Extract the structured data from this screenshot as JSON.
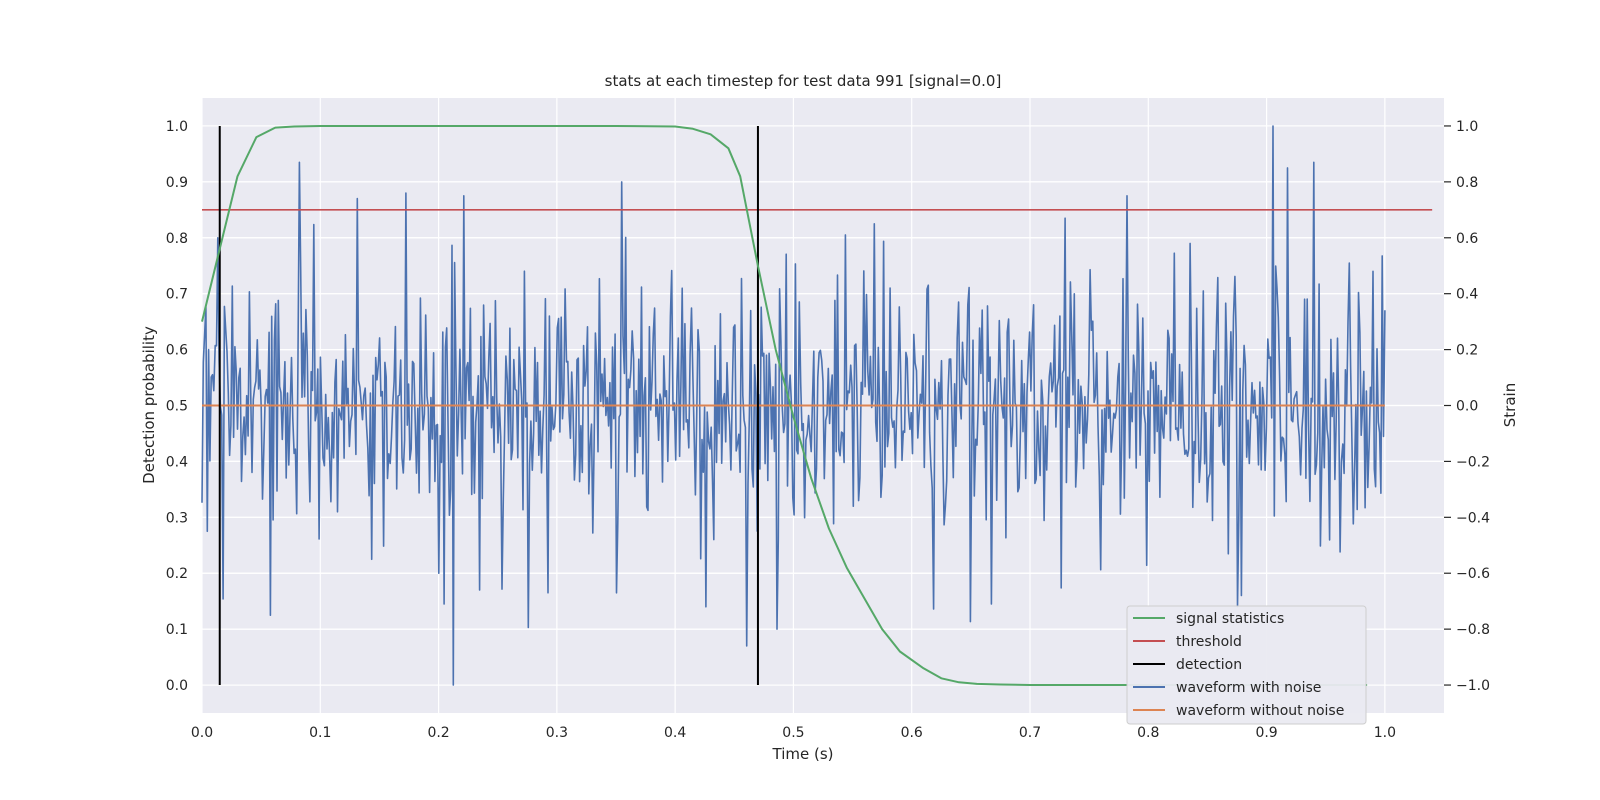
{
  "chart_data": {
    "type": "line",
    "title": "stats at each timestep for test data 991 [signal=0.0]",
    "xlabel": "Time (s)",
    "ylabel_left": "Detection probability",
    "ylabel_right": "Strain",
    "xlim": [
      0.0,
      1.05
    ],
    "ylim_left": [
      -0.05,
      1.05
    ],
    "ylim_right": [
      -1.1,
      1.1
    ],
    "x_ticks": [
      "0.0",
      "0.1",
      "0.2",
      "0.3",
      "0.4",
      "0.5",
      "0.6",
      "0.7",
      "0.8",
      "0.9",
      "1.0"
    ],
    "y_ticks_left": [
      "0.0",
      "0.1",
      "0.2",
      "0.3",
      "0.4",
      "0.5",
      "0.6",
      "0.7",
      "0.8",
      "0.9",
      "1.0"
    ],
    "y_ticks_right": [
      "−1.0",
      "−0.8",
      "−0.6",
      "−0.4",
      "−0.2",
      "0.0",
      "0.2",
      "0.4",
      "0.6",
      "0.8",
      "1.0"
    ],
    "grid": true,
    "legend_position": "lower-right",
    "signal_statistics": {
      "name": "signal statistics",
      "color": "#55a868",
      "axis": "left",
      "x": [
        0.0,
        0.015,
        0.03,
        0.046,
        0.062,
        0.078,
        0.1,
        0.15,
        0.2,
        0.25,
        0.3,
        0.35,
        0.4,
        0.415,
        0.43,
        0.445,
        0.455,
        0.47,
        0.485,
        0.5,
        0.515,
        0.53,
        0.545,
        0.56,
        0.575,
        0.59,
        0.61,
        0.625,
        0.64,
        0.655,
        0.675,
        0.7,
        0.8,
        0.9,
        0.985
      ],
      "y": [
        0.65,
        0.78,
        0.91,
        0.98,
        0.997,
        0.999,
        1.0,
        1.0,
        1.0,
        1.0,
        1.0,
        1.0,
        0.999,
        0.995,
        0.985,
        0.96,
        0.91,
        0.75,
        0.6,
        0.48,
        0.37,
        0.28,
        0.21,
        0.155,
        0.1,
        0.06,
        0.03,
        0.012,
        0.005,
        0.002,
        0.001,
        0.0,
        0.0,
        0.0,
        0.0
      ]
    },
    "threshold": {
      "name": "threshold",
      "color": "#c44e52",
      "axis": "left",
      "value": 0.85,
      "x_range": [
        0.0,
        1.04
      ]
    },
    "detection": {
      "name": "detection",
      "color": "#000000",
      "axis": "left",
      "x_positions": [
        0.015,
        0.47
      ],
      "y_range": [
        0.0,
        1.0
      ]
    },
    "waveform_with_noise": {
      "name": "waveform with noise",
      "color": "#4c72b0",
      "axis": "right",
      "x_range": [
        0.0,
        1.0
      ],
      "samples": 900,
      "noise_std": 0.22,
      "noise_min": -1.0,
      "noise_max": 1.0,
      "peaks": [
        [
          0.005,
          -0.45
        ],
        [
          0.013,
          0.6
        ],
        [
          0.058,
          -0.75
        ],
        [
          0.082,
          0.87
        ],
        [
          0.131,
          0.74
        ],
        [
          0.143,
          -0.55
        ],
        [
          0.172,
          0.76
        ],
        [
          0.2,
          -0.6
        ],
        [
          0.213,
          -1.0
        ],
        [
          0.221,
          0.75
        ],
        [
          0.235,
          -0.66
        ],
        [
          0.355,
          0.8
        ],
        [
          0.35,
          -0.67
        ],
        [
          0.426,
          -0.72
        ],
        [
          0.46,
          -0.86
        ],
        [
          0.486,
          -0.8
        ],
        [
          0.568,
          0.65
        ],
        [
          0.667,
          -0.71
        ],
        [
          0.73,
          0.67
        ],
        [
          0.782,
          0.75
        ],
        [
          0.835,
          0.58
        ],
        [
          0.875,
          -0.72
        ],
        [
          0.905,
          1.0
        ],
        [
          0.918,
          0.85
        ],
        [
          0.94,
          0.87
        ],
        [
          0.99,
          0.48
        ]
      ]
    },
    "waveform_without_noise": {
      "name": "waveform without noise",
      "color": "#dd8452",
      "axis": "right",
      "x_range": [
        0.0,
        1.0
      ],
      "value": 0.0
    }
  }
}
